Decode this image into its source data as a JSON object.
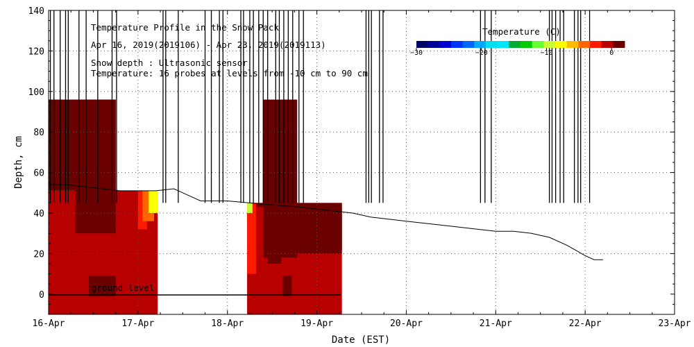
{
  "chart_data": {
    "type": "heatmap",
    "title": "Temperature Profile in the Snow Pack",
    "subtitle": "Apr 16, 2019(2019106) - Apr 23, 2019(2019113)",
    "info_lines": [
      "Snow depth : Ultrasonic sensor",
      "Temperature: 16 probes at levels from -10 cm to 90 cm"
    ],
    "xlabel": "Date (EST)",
    "ylabel": "Depth, cm",
    "x_ticks": [
      "16-Apr",
      "17-Apr",
      "18-Apr",
      "19-Apr",
      "20-Apr",
      "21-Apr",
      "22-Apr",
      "23-Apr"
    ],
    "xlim": [
      0,
      7
    ],
    "y_ticks": [
      0,
      20,
      40,
      60,
      80,
      100,
      120,
      140
    ],
    "ylim": [
      -10,
      140
    ],
    "grid": true,
    "ground_label": "ground level",
    "colorbar": {
      "title": "Temperature (C)",
      "range": [
        -30,
        2
      ],
      "ticks": [
        -30,
        -20,
        -10,
        0
      ],
      "colors": [
        "#000066",
        "#00009a",
        "#0000d0",
        "#0033ff",
        "#0066ff",
        "#00aaff",
        "#00ddee",
        "#00e5ff",
        "#00aa33",
        "#00cc00",
        "#66ff33",
        "#ccff33",
        "#ffff00",
        "#ffbb00",
        "#ff6600",
        "#ff1a00",
        "#b80000",
        "#6a0000"
      ]
    },
    "snow_depth": {
      "name": "Snow depth",
      "points": [
        [
          0.0,
          54
        ],
        [
          0.2,
          54
        ],
        [
          0.4,
          53
        ],
        [
          0.6,
          52
        ],
        [
          0.8,
          51
        ],
        [
          1.0,
          51
        ],
        [
          1.2,
          51
        ],
        [
          1.4,
          52
        ],
        [
          1.7,
          46
        ],
        [
          2.0,
          46
        ],
        [
          2.25,
          45
        ],
        [
          2.5,
          44
        ],
        [
          2.8,
          43
        ],
        [
          3.0,
          42
        ],
        [
          3.2,
          41
        ],
        [
          3.4,
          40
        ],
        [
          3.6,
          38
        ],
        [
          3.8,
          37
        ],
        [
          4.0,
          36
        ],
        [
          4.2,
          35
        ],
        [
          4.4,
          34
        ],
        [
          4.6,
          33
        ],
        [
          4.8,
          32
        ],
        [
          5.0,
          31
        ],
        [
          5.2,
          31
        ],
        [
          5.4,
          30
        ],
        [
          5.6,
          28
        ],
        [
          5.8,
          24
        ],
        [
          6.0,
          19
        ],
        [
          6.1,
          17
        ],
        [
          6.2,
          17
        ]
      ],
      "spikes_x": [
        0.02,
        0.06,
        0.13,
        0.19,
        0.22,
        0.34,
        0.42,
        0.55,
        0.71,
        0.76,
        1.28,
        1.31,
        1.45,
        1.75,
        1.82,
        1.91,
        1.95,
        2.15,
        2.18,
        2.25,
        2.29,
        2.35,
        2.4,
        2.45,
        2.54,
        2.58,
        2.63,
        2.68,
        2.73,
        2.8,
        2.85,
        3.55,
        3.58,
        3.61,
        3.7,
        3.74,
        4.83,
        4.88,
        4.95,
        5.6,
        5.63,
        5.67,
        5.72,
        5.76,
        5.88,
        5.92,
        5.95,
        6.05
      ]
    },
    "temperature_blocks": [
      {
        "x": [
          0.0,
          1.22
        ],
        "depth": [
          -10,
          51
        ],
        "temp": -0.5
      },
      {
        "x": [
          0.0,
          0.75
        ],
        "depth": [
          51,
          96
        ],
        "temp": 0.5
      },
      {
        "x": [
          0.0,
          0.75
        ],
        "depth": [
          54,
          96
        ],
        "temp": 1.0
      },
      {
        "x": [
          0.3,
          0.75
        ],
        "depth": [
          30,
          96
        ],
        "temp": 1.5
      },
      {
        "x": [
          0.45,
          0.75
        ],
        "depth": [
          32,
          96
        ],
        "temp": 1.8
      },
      {
        "x": [
          0.45,
          0.75
        ],
        "depth": [
          -1,
          9
        ],
        "temp": 1.8
      },
      {
        "x": [
          1.0,
          1.1
        ],
        "depth": [
          32,
          51
        ],
        "temp": -2
      },
      {
        "x": [
          1.05,
          1.18
        ],
        "depth": [
          36,
          51
        ],
        "temp": -4
      },
      {
        "x": [
          1.12,
          1.22
        ],
        "depth": [
          40,
          51
        ],
        "temp": -8
      },
      {
        "x": [
          2.22,
          3.28
        ],
        "depth": [
          -10,
          45
        ],
        "temp": -0.5
      },
      {
        "x": [
          2.25,
          3.28
        ],
        "depth": [
          20,
          45
        ],
        "temp": 1.0
      },
      {
        "x": [
          2.22,
          2.32
        ],
        "depth": [
          10,
          45
        ],
        "temp": -3
      },
      {
        "x": [
          2.22,
          2.28
        ],
        "depth": [
          40,
          45
        ],
        "temp": -10
      },
      {
        "x": [
          2.32,
          2.4
        ],
        "depth": [
          12,
          43
        ],
        "temp": -1.5
      },
      {
        "x": [
          2.4,
          2.78
        ],
        "depth": [
          18,
          96
        ],
        "temp": 1.5
      },
      {
        "x": [
          2.45,
          2.6
        ],
        "depth": [
          15,
          44
        ],
        "temp": 1.8
      },
      {
        "x": [
          2.62,
          2.72
        ],
        "depth": [
          -1,
          9
        ],
        "temp": 1.8
      },
      {
        "x": [
          2.75,
          3.28
        ],
        "depth": [
          22,
          42
        ],
        "temp": 1.3
      }
    ]
  }
}
